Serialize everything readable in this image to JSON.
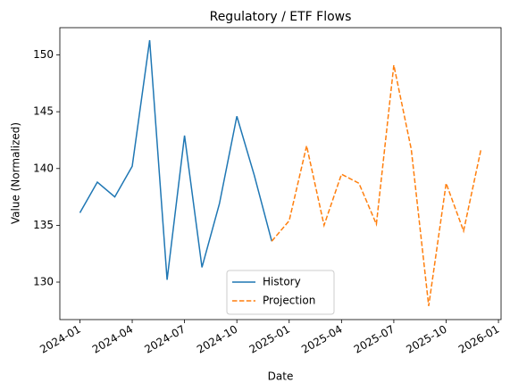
{
  "chart_data": {
    "type": "line",
    "title": "Regulatory / ETF Flows",
    "x_label": "Date",
    "y_label": "Value (Normalized)",
    "x": [
      "2024-01",
      "2024-02",
      "2024-03",
      "2024-04",
      "2024-05",
      "2024-06",
      "2024-07",
      "2024-08",
      "2024-09",
      "2024-10",
      "2024-11",
      "2024-12",
      "2025-01",
      "2025-02",
      "2025-03",
      "2025-04",
      "2025-05",
      "2025-06",
      "2025-07",
      "2025-08",
      "2025-09",
      "2025-10",
      "2025-11",
      "2025-12"
    ],
    "series": [
      {
        "name": "History",
        "color": "#1f77b4",
        "linestyle": "solid",
        "values": [
          136.1,
          138.8,
          137.5,
          140.2,
          151.3,
          130.2,
          142.9,
          131.3,
          136.9,
          144.6,
          139.4,
          133.6,
          null,
          null,
          null,
          null,
          null,
          null,
          null,
          null,
          null,
          null,
          null,
          null
        ]
      },
      {
        "name": "Projection",
        "color": "#ff7f0e",
        "linestyle": "dashed",
        "values": [
          null,
          null,
          null,
          null,
          null,
          null,
          null,
          null,
          null,
          null,
          null,
          133.6,
          135.4,
          142.0,
          135.0,
          139.5,
          138.7,
          135.1,
          149.1,
          141.7,
          127.9,
          138.7,
          134.5,
          141.7
        ]
      }
    ],
    "ylim": [
      126.7,
      152.4
    ],
    "yticks": [
      130,
      135,
      140,
      145,
      150
    ],
    "xticks": [
      "2024-01",
      "2024-04",
      "2024-07",
      "2024-10",
      "2025-01",
      "2025-04",
      "2025-07",
      "2025-10",
      "2026-01"
    ],
    "legend": "lower center"
  }
}
